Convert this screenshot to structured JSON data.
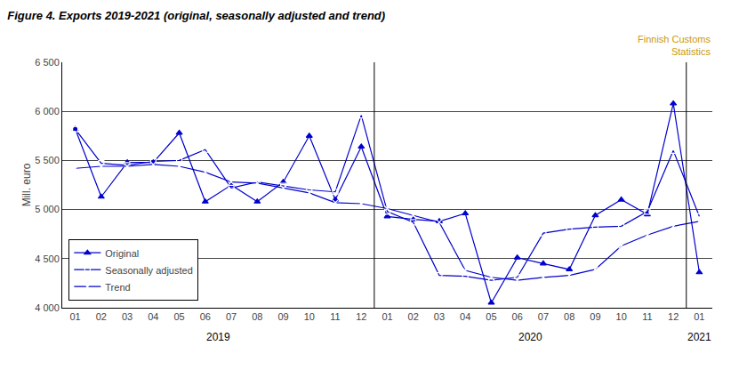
{
  "chart_data": {
    "type": "line",
    "title": "Figure 4. Exports 2019-2021 (original, seasonally adjusted and trend)",
    "ylabel": "Mill. euro",
    "categories": [
      "01",
      "02",
      "03",
      "04",
      "05",
      "06",
      "07",
      "08",
      "09",
      "10",
      "11",
      "12",
      "01",
      "02",
      "03",
      "04",
      "05",
      "06",
      "07",
      "08",
      "09",
      "10",
      "11",
      "12",
      "01"
    ],
    "x_groups": [
      {
        "label": "2019",
        "size": 12
      },
      {
        "label": "2020",
        "size": 12
      },
      {
        "label": "2021",
        "size": 1
      }
    ],
    "series": [
      {
        "name": "Original",
        "color": "#0000cc",
        "marker": "triangle",
        "values": [
          5820,
          5130,
          5480,
          5480,
          5780,
          5080,
          5250,
          5080,
          5280,
          5750,
          5100,
          5640,
          4930,
          4900,
          4880,
          4960,
          4050,
          4510,
          4450,
          4390,
          4940,
          5100,
          4950,
          6080,
          4360
        ]
      },
      {
        "name": "Seasonally adjusted",
        "color": "#0000cc",
        "marker": "square-open",
        "values": [
          5820,
          5470,
          5450,
          5490,
          5500,
          5610,
          5220,
          5280,
          5240,
          5200,
          5180,
          5960,
          4980,
          4870,
          4330,
          4320,
          4280,
          4310,
          4760,
          4800,
          4820,
          4830,
          4980,
          5600,
          4930
        ]
      },
      {
        "name": "Trend",
        "color": "#0000cc",
        "marker": "x",
        "values": [
          5420,
          5440,
          5440,
          5460,
          5440,
          5380,
          5280,
          5270,
          5220,
          5170,
          5070,
          5060,
          5010,
          4940,
          4870,
          4380,
          4310,
          4280,
          4310,
          4330,
          4390,
          4630,
          4740,
          4830,
          4880
        ]
      }
    ],
    "ylim": [
      4000,
      6500
    ],
    "yticks": [
      {
        "value": 4000,
        "label": "4 000"
      },
      {
        "value": 4500,
        "label": "4 500"
      },
      {
        "value": 5000,
        "label": "5 000"
      },
      {
        "value": 5500,
        "label": "5 500"
      },
      {
        "value": 6000,
        "label": "6 000"
      },
      {
        "value": 6500,
        "label": "6 500"
      }
    ],
    "grid": true,
    "legend": "lower left",
    "annotations": [
      {
        "text": "Finnish Customs\nStatistics",
        "color": "#cc9900"
      }
    ]
  }
}
